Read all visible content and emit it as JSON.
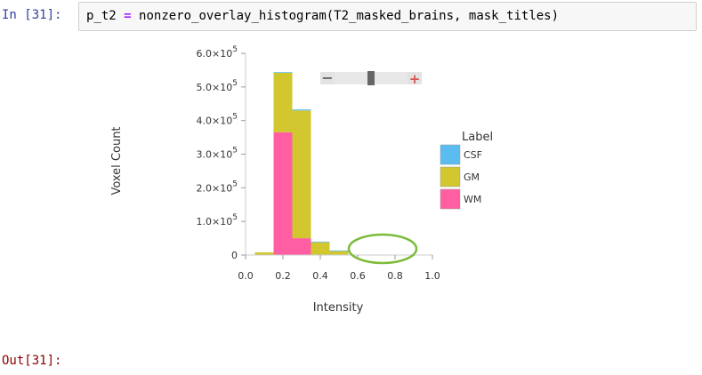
{
  "input_prompt": "In [31]:",
  "output_prompt": "Out[31]:",
  "code": {
    "var": "p_t2",
    "op": "=",
    "rest": "nonzero_overlay_histogram(T2_masked_brains, mask_titles)"
  },
  "zoom_control": {
    "minus_label": "−",
    "plus_label": "+"
  },
  "chart_data": {
    "type": "bar",
    "stacked": true,
    "xlabel": "Intensity",
    "ylabel": "Voxel Count",
    "xlim": [
      0,
      1
    ],
    "ylim": [
      0,
      600000
    ],
    "x_ticks": [
      "0.0",
      "0.2",
      "0.4",
      "0.6",
      "0.8",
      "1.0"
    ],
    "y_ticks": [
      {
        "value": 0,
        "base": "0",
        "exp": ""
      },
      {
        "value": 100000,
        "base": "1.0×10",
        "exp": "5"
      },
      {
        "value": 200000,
        "base": "2.0×10",
        "exp": "5"
      },
      {
        "value": 300000,
        "base": "3.0×10",
        "exp": "5"
      },
      {
        "value": 400000,
        "base": "4.0×10",
        "exp": "5"
      },
      {
        "value": 500000,
        "base": "5.0×10",
        "exp": "5"
      },
      {
        "value": 600000,
        "base": "6.0×10",
        "exp": "5"
      }
    ],
    "bin_edges": [
      0.05,
      0.15,
      0.25,
      0.35,
      0.45,
      0.55,
      0.65,
      0.75,
      0.85
    ],
    "legend": {
      "title": "Label",
      "position": "right"
    },
    "series": [
      {
        "name": "WM",
        "color": "#ff5fa2",
        "values": [
          0,
          365000,
          50000,
          0,
          0,
          0,
          0,
          0
        ]
      },
      {
        "name": "GM",
        "color": "#d2c72e",
        "values": [
          8000,
          177000,
          380000,
          38000,
          12000,
          0,
          0,
          0
        ]
      },
      {
        "name": "CSF",
        "color": "#5bbcf0",
        "values": [
          0,
          2000,
          3000,
          2000,
          1500,
          1000,
          1500,
          1000
        ]
      }
    ],
    "annotation": {
      "type": "ellipse",
      "color": "#7dbb3a"
    }
  }
}
